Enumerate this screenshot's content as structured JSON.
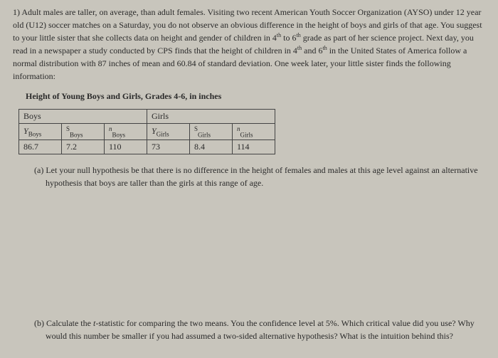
{
  "problem": {
    "number": "1)",
    "text": "Adult males are taller, on average, than adult females. Visiting two recent American Youth Soccer Organization (AYSO) under 12 year old (U12) soccer matches on a Saturday, you do not observe an obvious difference in the height of boys and girls of that age. You suggest to your little sister that she collects data on height and gender of children in 4th to 6th grade as part of her science project. Next day, you read in a newspaper a study conducted by CPS finds that the height of children in 4th and 6th in the United States of America follow a normal distribution with 87 inches of mean and 60.84 of standard deviation. One week later, your little sister finds the following information:"
  },
  "table": {
    "title": "Height of Young Boys and Girls, Grades 4-6, in inches",
    "headers": {
      "boys": "Boys",
      "girls": "Girls"
    },
    "subheaders": {
      "y_boys_pre": "Y",
      "y_boys_sub": "Boys",
      "s_boys_pre": "S",
      "s_boys_sub": "Boys",
      "n_boys_pre": "n",
      "n_boys_sub": "Boys",
      "y_girls_pre": "Y",
      "y_girls_sub": "Girls",
      "s_girls_pre": "S",
      "s_girls_sub": "Girls",
      "n_girls_pre": "n",
      "n_girls_sub": "Girls"
    },
    "values": {
      "y_boys": "86.7",
      "s_boys": "7.2",
      "n_boys": "110",
      "y_girls": "73",
      "s_girls": "8.4",
      "n_girls": "114"
    }
  },
  "parts": {
    "a": {
      "label": "(a)",
      "text": "Let your null hypothesis be that there is no difference in the height of females and males at this age level against an alternative hypothesis that boys are taller than the girls at this range of age."
    },
    "b": {
      "label": "(b)",
      "text": "Calculate the t-statistic for comparing the two means. You the confidence level at 5%. Which critical value did you use? Why would this number be smaller if you had assumed a two-sided alternative hypothesis? What is the intuition behind this?"
    }
  }
}
